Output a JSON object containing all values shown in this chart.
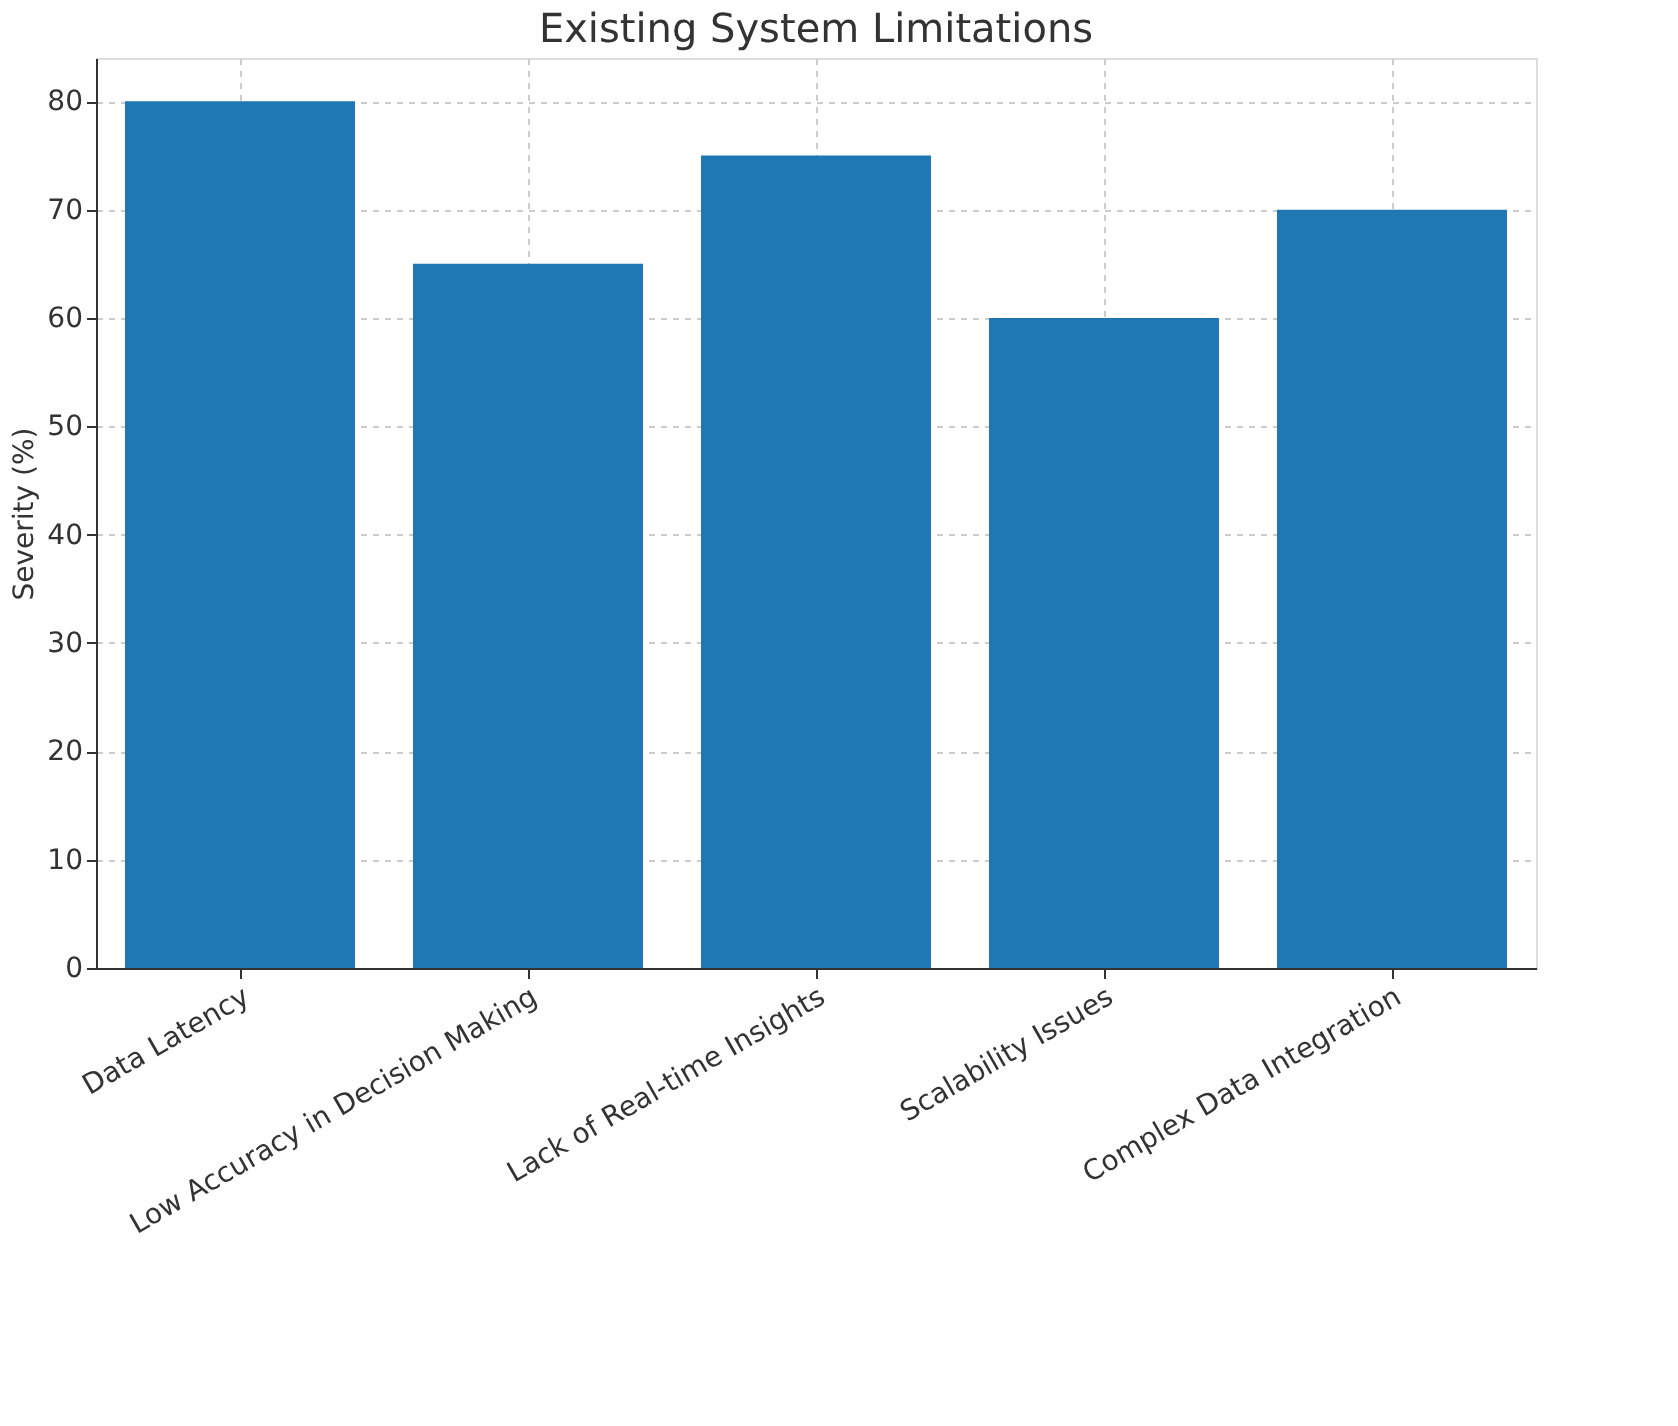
{
  "chart_data": {
    "type": "bar",
    "title": "Existing System Limitations",
    "ylabel": "Severity (%)",
    "categories": [
      "Data Latency",
      "Low Accuracy in Decision Making",
      "Lack of Real-time Insights",
      "Scalability Issues",
      "Complex Data Integration"
    ],
    "values": [
      80,
      65,
      75,
      60,
      70
    ],
    "color": "#1f77b4",
    "ylim": [
      0,
      84
    ],
    "yticks": [
      0,
      10,
      20,
      30,
      40,
      50,
      60,
      70,
      80
    ],
    "grid": true
  }
}
